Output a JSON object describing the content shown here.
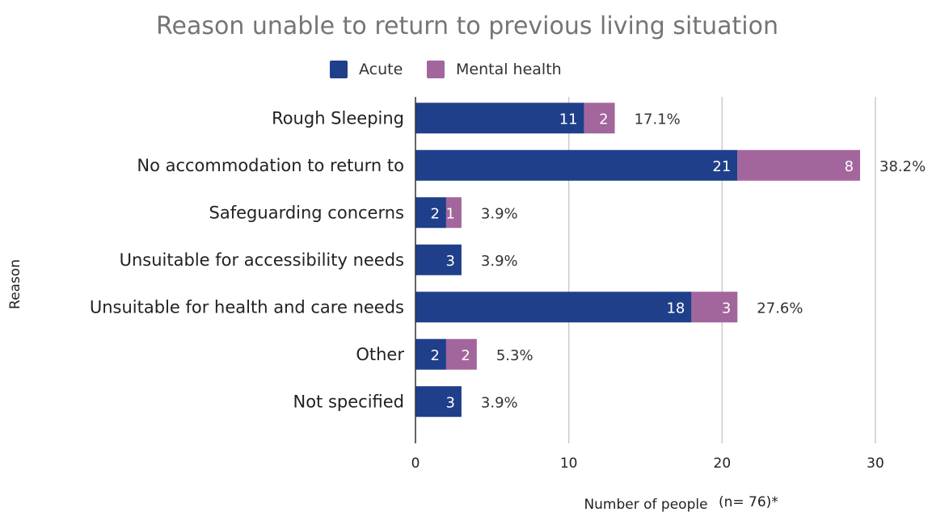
{
  "chart_data": {
    "type": "bar",
    "orientation": "horizontal",
    "stacked": true,
    "title": "Reason unable to return to previous living situation",
    "ylabel": "Reason",
    "xlabel": "Number of people",
    "note": "(n= 76)*",
    "xlim": [
      0,
      30
    ],
    "xticks": [
      0,
      10,
      20,
      30
    ],
    "grid": true,
    "legend": "top",
    "categories": [
      "Rough Sleeping",
      "No accommodation to return to",
      "Safeguarding concerns",
      "Unsuitable for accessibility needs",
      "Unsuitable for health and care needs",
      "Other",
      "Not specified"
    ],
    "series": [
      {
        "name": "Acute",
        "color": "#1f3f8a",
        "values": [
          11,
          21,
          2,
          3,
          18,
          2,
          3
        ]
      },
      {
        "name": "Mental health",
        "color": "#a2669c",
        "values": [
          2,
          8,
          1,
          0,
          3,
          2,
          0
        ]
      }
    ],
    "percentages": [
      "17.1%",
      "38.2%",
      "3.9%",
      "3.9%",
      "27.6%",
      "5.3%",
      "3.9%"
    ]
  }
}
